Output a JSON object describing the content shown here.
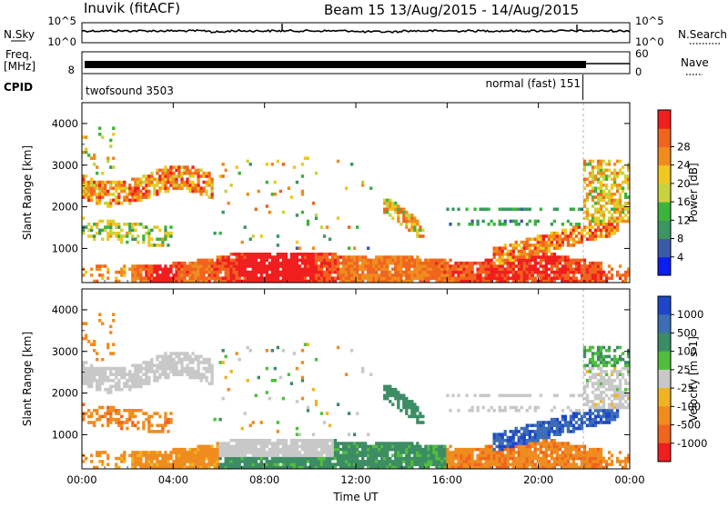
{
  "header": {
    "station": "Inuvik (fitACF)",
    "beam_date": "Beam 15 13/Aug/2015 - 14/Aug/2015"
  },
  "top_panels": {
    "nsky_label": "N.Sky",
    "nsky_ticks": [
      "10^5",
      "10^0"
    ],
    "nsearch_label": "N.Search",
    "nsearch_ticks": [
      "10^5",
      "10^0"
    ],
    "freq_label_1": "Freq.",
    "freq_label_2": "[MHz]",
    "freq_ticks": [
      "8"
    ],
    "nave_label": "Nave",
    "nave_ticks": [
      "60",
      "0"
    ],
    "cpid_label": "CPID",
    "cpid_modes": [
      {
        "text": "twofsound 3503",
        "start_hour": 0,
        "end_hour": 21.95
      },
      {
        "text": "normal (fast) 151",
        "start_hour": 21.95,
        "end_hour": 24
      }
    ]
  },
  "chart_data": [
    {
      "type": "heatmap",
      "title": "Power",
      "ylabel": "Slant Range [km]",
      "xlabel": "Time UT",
      "x_ticks": [
        "00:00",
        "04:00",
        "08:00",
        "12:00",
        "16:00",
        "20:00",
        "00:00"
      ],
      "y_ticks": [
        1000,
        2000,
        3000,
        4000
      ],
      "xlim_hours": [
        0,
        24
      ],
      "ylim_km": [
        180,
        4500
      ],
      "colorbar": {
        "label": "Power [dB]",
        "ticks": [
          "4",
          "8",
          "12",
          "16",
          "20",
          "24",
          "28"
        ],
        "colors": [
          "#0a1ef0",
          "#3c5aa8",
          "#3c9660",
          "#3cb43c",
          "#c8d23c",
          "#f0c81e",
          "#f08c1e",
          "#f0641e",
          "#f01e1e"
        ]
      }
    },
    {
      "type": "heatmap",
      "title": "Velocity",
      "ylabel": "Slant Range [km]",
      "xlabel": "Time UT",
      "x_ticks": [
        "00:00",
        "04:00",
        "08:00",
        "12:00",
        "16:00",
        "20:00",
        "00:00"
      ],
      "y_ticks": [
        1000,
        2000,
        3000,
        4000
      ],
      "xlim_hours": [
        0,
        24
      ],
      "ylim_km": [
        180,
        4500
      ],
      "colorbar": {
        "label": "Velocity [m s-1]",
        "ticks": [
          "1000",
          "500",
          "100",
          "25",
          "-25",
          "-100",
          "-500",
          "-1000"
        ],
        "colors": [
          "#1e46c8",
          "#3c6eb4",
          "#3c8c64",
          "#50be3c",
          "#c8c8c8",
          "#f0b41e",
          "#f08c1e",
          "#f0641e",
          "#f01e1e"
        ]
      }
    }
  ],
  "time_axis_label": "Time UT"
}
